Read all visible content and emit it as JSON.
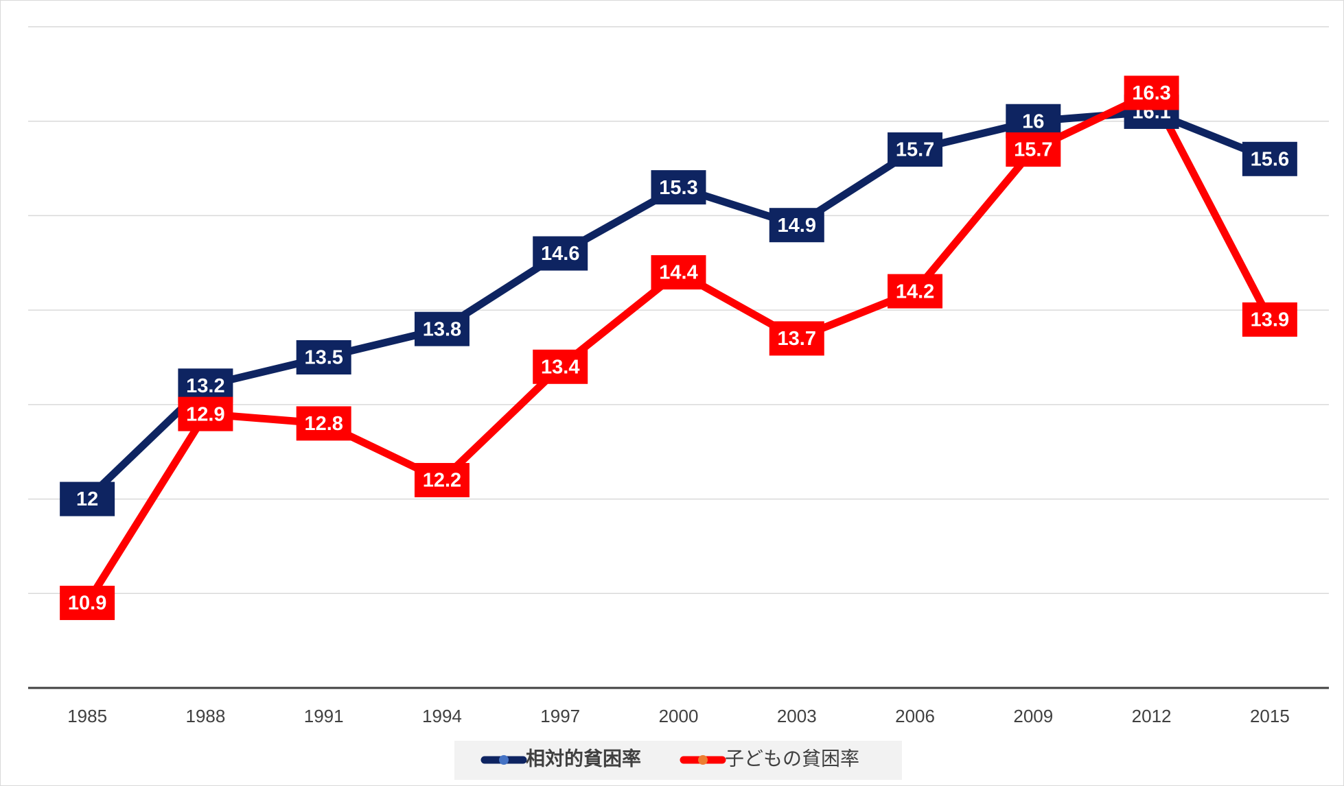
{
  "chart_data": {
    "type": "line",
    "categories": [
      "1985",
      "1988",
      "1991",
      "1994",
      "1997",
      "2000",
      "2003",
      "2006",
      "2009",
      "2012",
      "2015"
    ],
    "series": [
      {
        "name": "相対的貧困率",
        "color": "#0e2461",
        "values": [
          12,
          13.2,
          13.5,
          13.8,
          14.6,
          15.3,
          14.9,
          15.7,
          16,
          16.1,
          15.6
        ]
      },
      {
        "name": "子どもの貧困率",
        "color": "#ff0000",
        "values": [
          10.9,
          12.9,
          12.8,
          12.2,
          13.4,
          14.4,
          13.7,
          14.2,
          15.7,
          16.3,
          13.9
        ]
      }
    ],
    "ylim": [
      10,
      17
    ],
    "yticks": [
      10,
      11,
      12,
      13,
      14,
      15,
      16,
      17
    ],
    "grid": true,
    "legend": "bottom"
  }
}
